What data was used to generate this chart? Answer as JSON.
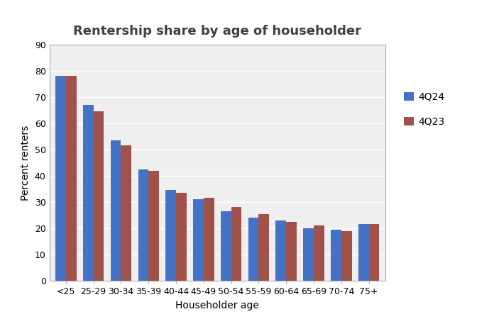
{
  "title": "Rentership share by age of householder",
  "xlabel": "Householder age",
  "ylabel": "Percent renters",
  "categories": [
    "<25",
    "25-29",
    "30-34",
    "35-39",
    "40-44",
    "45-49",
    "50-54",
    "55-59",
    "60-64",
    "65-69",
    "70-74",
    "75+"
  ],
  "series": {
    "4Q24": [
      78,
      67,
      53.5,
      42.5,
      34.5,
      31,
      26.5,
      24,
      23,
      20,
      19.5,
      21.5
    ],
    "4Q23": [
      78,
      64.5,
      51.5,
      42,
      33.5,
      31.5,
      28,
      25.5,
      22.5,
      21,
      19,
      21.5
    ]
  },
  "bar_colors": {
    "4Q24": "#4472C4",
    "4Q23": "#A0524A"
  },
  "ylim": [
    0,
    90
  ],
  "yticks": [
    0,
    10,
    20,
    30,
    40,
    50,
    60,
    70,
    80,
    90
  ],
  "legend_labels": [
    "4Q24",
    "4Q23"
  ],
  "plot_area_color": "#EFEFEF",
  "outer_background": "#FFFFFF",
  "grid_color": "#FFFFFF",
  "title_fontsize": 13,
  "axis_label_fontsize": 10,
  "tick_fontsize": 9,
  "legend_fontsize": 10,
  "bar_width": 0.38
}
